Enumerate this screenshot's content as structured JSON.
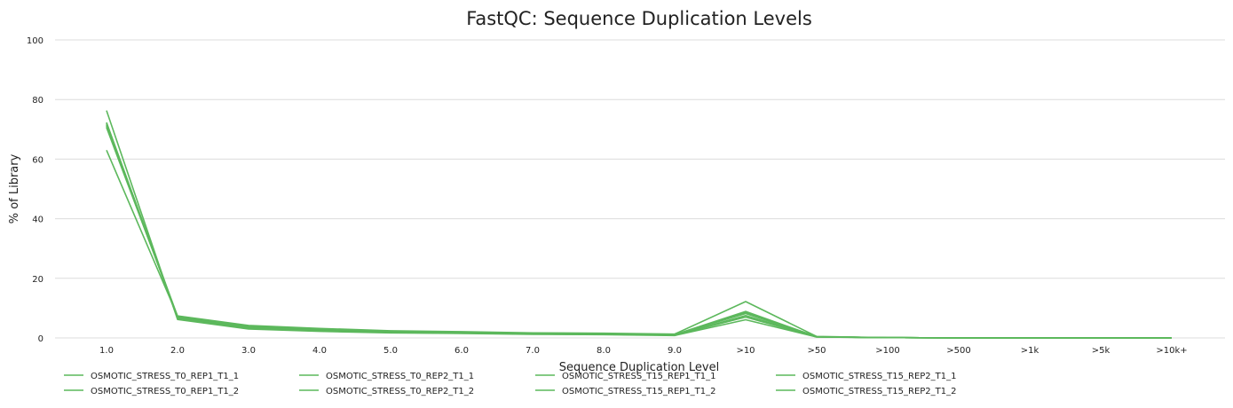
{
  "chart_data": {
    "type": "line",
    "title": "FastQC: Sequence Duplication Levels",
    "xlabel": "Sequence Duplication Level",
    "ylabel": "% of Library",
    "ylim": [
      0,
      100
    ],
    "yticks": [
      0,
      20,
      40,
      60,
      80,
      100
    ],
    "categories": [
      "1.0",
      "2.0",
      "3.0",
      "4.0",
      "5.0",
      "6.0",
      "7.0",
      "8.0",
      "9.0",
      ">10",
      ">50",
      ">100",
      ">500",
      ">1k",
      ">5k",
      ">10k+"
    ],
    "grid": true,
    "legend_position": "bottom",
    "series": [
      {
        "name": "OSMOTIC_STRESS_T0_REP1_T1_1",
        "color": "#5cb85c",
        "values": [
          72.0,
          7.3,
          4.0,
          2.9,
          2.2,
          1.9,
          1.5,
          1.4,
          1.1,
          8.2,
          0.4,
          0.1,
          0.0,
          0.0,
          0.0,
          0.0
        ]
      },
      {
        "name": "OSMOTIC_STRESS_T0_REP1_T1_2",
        "color": "#5cb85c",
        "values": [
          71.3,
          7.0,
          3.6,
          2.6,
          2.0,
          1.8,
          1.4,
          1.3,
          1.0,
          8.7,
          0.4,
          0.1,
          0.0,
          0.0,
          0.0,
          0.0
        ]
      },
      {
        "name": "OSMOTIC_STRESS_T0_REP2_T1_1",
        "color": "#5cb85c",
        "values": [
          76.3,
          6.2,
          3.0,
          2.2,
          1.7,
          1.5,
          1.2,
          1.1,
          0.8,
          6.1,
          0.3,
          0.1,
          0.0,
          0.0,
          0.0,
          0.0
        ]
      },
      {
        "name": "OSMOTIC_STRESS_T0_REP2_T1_2",
        "color": "#5cb85c",
        "values": [
          63.0,
          7.4,
          4.2,
          3.2,
          2.4,
          2.1,
          1.7,
          1.6,
          1.3,
          12.2,
          0.5,
          0.1,
          0.0,
          0.0,
          0.0,
          0.0
        ]
      },
      {
        "name": "OSMOTIC_STRESS_T15_REP1_T1_1",
        "color": "#5cb85c",
        "values": [
          71.6,
          6.8,
          3.5,
          2.5,
          1.9,
          1.7,
          1.3,
          1.2,
          0.9,
          7.5,
          0.4,
          0.1,
          0.0,
          0.0,
          0.0,
          0.0
        ]
      },
      {
        "name": "OSMOTIC_STRESS_T15_REP1_T1_2",
        "color": "#5cb85c",
        "values": [
          72.3,
          6.6,
          3.3,
          2.4,
          1.8,
          1.6,
          1.3,
          1.2,
          0.9,
          7.0,
          0.3,
          0.1,
          0.0,
          0.0,
          0.0,
          0.0
        ]
      },
      {
        "name": "OSMOTIC_STRESS_T15_REP2_T1_1",
        "color": "#5cb85c",
        "values": [
          71.0,
          7.1,
          3.8,
          2.7,
          2.1,
          1.8,
          1.4,
          1.3,
          1.0,
          8.5,
          0.4,
          0.1,
          0.0,
          0.0,
          0.0,
          0.0
        ]
      },
      {
        "name": "OSMOTIC_STRESS_T15_REP2_T1_2",
        "color": "#5cb85c",
        "values": [
          70.6,
          7.2,
          3.9,
          2.8,
          2.1,
          1.9,
          1.5,
          1.3,
          1.1,
          8.9,
          0.4,
          0.1,
          0.0,
          0.0,
          0.0,
          0.0
        ]
      }
    ]
  }
}
